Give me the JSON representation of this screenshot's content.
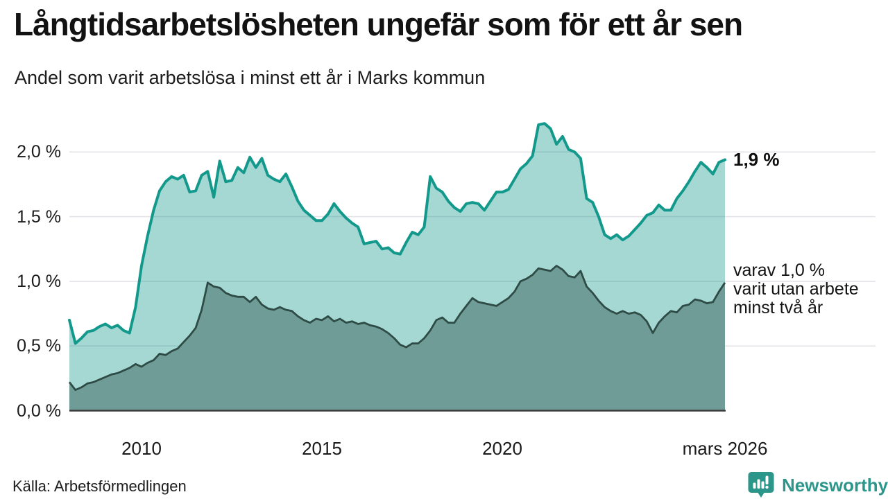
{
  "header": {
    "title": "Långtidsarbetslösheten ungefär som för ett år sen",
    "subtitle": "Andel som varit arbetslösa i minst ett år i Marks kommun"
  },
  "annotations": {
    "latest_total": "1,9 %",
    "secondary_line1": "varav 1,0 %",
    "secondary_line2": "varit utan arbete",
    "secondary_line3": "minst två år"
  },
  "footer": {
    "source": "Källa: Arbetsförmedlingen",
    "brand": "Newsworthy",
    "brand_icon": "newsworthy-chart-bubble-icon"
  },
  "colors": {
    "total_line": "#13998b",
    "total_fill": "rgba(19,153,139,0.38)",
    "two_year_fill": "#6f9c96",
    "two_year_line": "#2e4b46",
    "grid": "#e3e3e8",
    "axis": "#3a3a3a",
    "brand_teal": "#2d968b"
  },
  "chart_data": {
    "type": "area",
    "title": "Långtidsarbetslösheten ungefär som för ett år sen",
    "subtitle": "Andel som varit arbetslösa i minst ett år i Marks kommun",
    "x_start": 2008.0,
    "x_end": 2026.1667,
    "x_step_months": 2,
    "ylim": [
      0,
      2.25
    ],
    "grid": true,
    "y_ticks": [
      {
        "label": "0,0 %",
        "value": 0.0
      },
      {
        "label": "0,5 %",
        "value": 0.5
      },
      {
        "label": "1,0 %",
        "value": 1.0
      },
      {
        "label": "1,5 %",
        "value": 1.5
      },
      {
        "label": "2,0 %",
        "value": 2.0
      }
    ],
    "x_ticks": [
      {
        "label": "2010",
        "year": 2010.0
      },
      {
        "label": "2015",
        "year": 2015.0
      },
      {
        "label": "2020",
        "year": 2020.0
      },
      {
        "label": "mars 2026",
        "year": 2026.1667
      }
    ],
    "series": [
      {
        "name": "Andel arbetslösa minst ett år",
        "latest_label": "1,9 %",
        "values": [
          0.7,
          0.52,
          0.56,
          0.61,
          0.62,
          0.65,
          0.67,
          0.64,
          0.66,
          0.62,
          0.6,
          0.8,
          1.12,
          1.35,
          1.55,
          1.7,
          1.77,
          1.81,
          1.79,
          1.82,
          1.69,
          1.7,
          1.82,
          1.85,
          1.65,
          1.93,
          1.77,
          1.78,
          1.88,
          1.84,
          1.96,
          1.88,
          1.95,
          1.82,
          1.79,
          1.77,
          1.83,
          1.73,
          1.62,
          1.55,
          1.51,
          1.47,
          1.47,
          1.52,
          1.6,
          1.54,
          1.49,
          1.45,
          1.42,
          1.29,
          1.3,
          1.31,
          1.25,
          1.26,
          1.22,
          1.21,
          1.3,
          1.38,
          1.36,
          1.42,
          1.81,
          1.72,
          1.69,
          1.62,
          1.57,
          1.54,
          1.6,
          1.61,
          1.6,
          1.55,
          1.62,
          1.69,
          1.69,
          1.71,
          1.79,
          1.87,
          1.91,
          1.97,
          2.21,
          2.22,
          2.18,
          2.06,
          2.12,
          2.02,
          2.0,
          1.95,
          1.64,
          1.61,
          1.5,
          1.36,
          1.33,
          1.36,
          1.32,
          1.35,
          1.4,
          1.45,
          1.51,
          1.53,
          1.59,
          1.55,
          1.55,
          1.64,
          1.7,
          1.77,
          1.85,
          1.92,
          1.88,
          1.83,
          1.92,
          1.94
        ]
      },
      {
        "name": "varav arbetslösa minst två år",
        "latest_label": "1,0 %",
        "values": [
          0.22,
          0.16,
          0.18,
          0.21,
          0.22,
          0.24,
          0.26,
          0.28,
          0.29,
          0.31,
          0.33,
          0.36,
          0.34,
          0.37,
          0.39,
          0.44,
          0.43,
          0.46,
          0.48,
          0.53,
          0.58,
          0.64,
          0.78,
          0.99,
          0.96,
          0.95,
          0.91,
          0.89,
          0.88,
          0.88,
          0.84,
          0.88,
          0.82,
          0.79,
          0.78,
          0.8,
          0.78,
          0.77,
          0.73,
          0.7,
          0.68,
          0.71,
          0.7,
          0.73,
          0.69,
          0.71,
          0.68,
          0.69,
          0.67,
          0.68,
          0.66,
          0.65,
          0.63,
          0.6,
          0.56,
          0.51,
          0.49,
          0.52,
          0.52,
          0.56,
          0.62,
          0.7,
          0.72,
          0.68,
          0.68,
          0.75,
          0.81,
          0.87,
          0.84,
          0.83,
          0.82,
          0.81,
          0.84,
          0.87,
          0.92,
          1.0,
          1.02,
          1.05,
          1.1,
          1.09,
          1.08,
          1.12,
          1.09,
          1.04,
          1.03,
          1.08,
          0.96,
          0.91,
          0.85,
          0.8,
          0.77,
          0.75,
          0.77,
          0.75,
          0.76,
          0.74,
          0.69,
          0.6,
          0.68,
          0.73,
          0.77,
          0.76,
          0.81,
          0.82,
          0.86,
          0.85,
          0.83,
          0.84,
          0.92,
          0.99
        ]
      }
    ]
  }
}
